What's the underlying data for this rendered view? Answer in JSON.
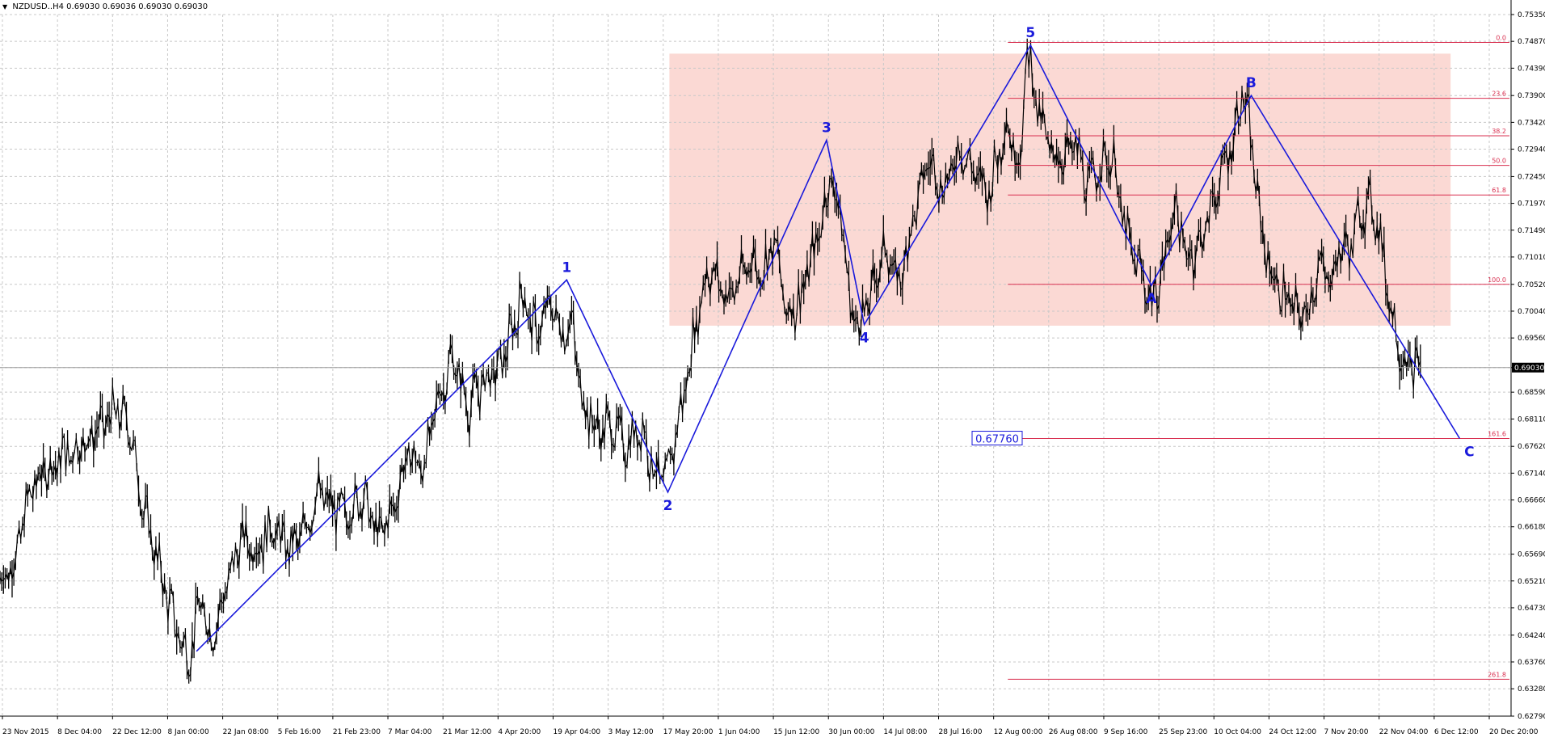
{
  "header": {
    "symbol": "NZDUSD..H4",
    "ohlc": "0.69030 0.69036 0.69030 0.69030",
    "menu_icon": "triangle-down-icon"
  },
  "colors": {
    "background": "#ffffff",
    "grid": "#c8c8c8",
    "price": "#000000",
    "wave": "#1a1adb",
    "fib": "#d93050",
    "zone": "#fbd9d4",
    "current_price_box": "#000000"
  },
  "chart_data": {
    "type": "candlestick",
    "symbol": "NZDUSD",
    "timeframe": "H4",
    "ylim": [
      0.6279,
      0.7535
    ],
    "y_ticks": [
      "0.75350",
      "0.74870",
      "0.74390",
      "0.73900",
      "0.73420",
      "0.72940",
      "0.72450",
      "0.71970",
      "0.71490",
      "0.71010",
      "0.70520",
      "0.70040",
      "0.69560",
      "0.69030",
      "0.68590",
      "0.68110",
      "0.67620",
      "0.67140",
      "0.66660",
      "0.66180",
      "0.65690",
      "0.65210",
      "0.64730",
      "0.64240",
      "0.63760",
      "0.63280",
      "0.62790"
    ],
    "x_ticks": [
      "23 Nov 2015",
      "8 Dec 04:00",
      "22 Dec 12:00",
      "8 Jan 00:00",
      "22 Jan 08:00",
      "5 Feb 16:00",
      "21 Feb 23:00",
      "7 Mar 04:00",
      "21 Mar 12:00",
      "4 Apr 20:00",
      "19 Apr 04:00",
      "3 May 12:00",
      "17 May 20:00",
      "1 Jun 04:00",
      "15 Jun 12:00",
      "30 Jun 00:00",
      "14 Jul 08:00",
      "28 Jul 16:00",
      "12 Aug 00:00",
      "26 Aug 08:00",
      "9 Sep 16:00",
      "25 Sep 23:00",
      "10 Oct 04:00",
      "24 Oct 12:00",
      "7 Nov 20:00",
      "22 Nov 04:00",
      "6 Dec 12:00",
      "20 Dec 20:00"
    ],
    "current_price": "0.69030",
    "price_path": [
      [
        0,
        0.652
      ],
      [
        0.01,
        0.656
      ],
      [
        0.02,
        0.668
      ],
      [
        0.03,
        0.672
      ],
      [
        0.045,
        0.675
      ],
      [
        0.06,
        0.678
      ],
      [
        0.075,
        0.682
      ],
      [
        0.085,
        0.681
      ],
      [
        0.095,
        0.665
      ],
      [
        0.105,
        0.655
      ],
      [
        0.115,
        0.645
      ],
      [
        0.125,
        0.638
      ],
      [
        0.132,
        0.648
      ],
      [
        0.14,
        0.642
      ],
      [
        0.15,
        0.651
      ],
      [
        0.16,
        0.66
      ],
      [
        0.17,
        0.658
      ],
      [
        0.18,
        0.662
      ],
      [
        0.19,
        0.658
      ],
      [
        0.2,
        0.66
      ],
      [
        0.21,
        0.668
      ],
      [
        0.22,
        0.665
      ],
      [
        0.23,
        0.664
      ],
      [
        0.24,
        0.668
      ],
      [
        0.25,
        0.66
      ],
      [
        0.26,
        0.665
      ],
      [
        0.27,
        0.675
      ],
      [
        0.28,
        0.672
      ],
      [
        0.29,
        0.685
      ],
      [
        0.3,
        0.692
      ],
      [
        0.31,
        0.683
      ],
      [
        0.32,
        0.688
      ],
      [
        0.33,
        0.69
      ],
      [
        0.34,
        0.697
      ],
      [
        0.345,
        0.704
      ],
      [
        0.355,
        0.696
      ],
      [
        0.365,
        0.702
      ],
      [
        0.372,
        0.696
      ],
      [
        0.378,
        0.699
      ],
      [
        0.385,
        0.685
      ],
      [
        0.395,
        0.679
      ],
      [
        0.405,
        0.68
      ],
      [
        0.415,
        0.676
      ],
      [
        0.425,
        0.68
      ],
      [
        0.432,
        0.673
      ],
      [
        0.44,
        0.669
      ],
      [
        0.445,
        0.676
      ],
      [
        0.45,
        0.682
      ],
      [
        0.455,
        0.689
      ],
      [
        0.462,
        0.7
      ],
      [
        0.468,
        0.708
      ],
      [
        0.475,
        0.706
      ],
      [
        0.482,
        0.703
      ],
      [
        0.49,
        0.706
      ],
      [
        0.497,
        0.71
      ],
      [
        0.505,
        0.707
      ],
      [
        0.51,
        0.713
      ],
      [
        0.515,
        0.71
      ],
      [
        0.52,
        0.7
      ],
      [
        0.53,
        0.703
      ],
      [
        0.54,
        0.712
      ],
      [
        0.55,
        0.725
      ],
      [
        0.558,
        0.715
      ],
      [
        0.563,
        0.7
      ],
      [
        0.57,
        0.699
      ],
      [
        0.575,
        0.702
      ],
      [
        0.585,
        0.712
      ],
      [
        0.595,
        0.705
      ],
      [
        0.605,
        0.718
      ],
      [
        0.615,
        0.728
      ],
      [
        0.625,
        0.722
      ],
      [
        0.635,
        0.73
      ],
      [
        0.645,
        0.725
      ],
      [
        0.655,
        0.722
      ],
      [
        0.665,
        0.734
      ],
      [
        0.675,
        0.727
      ],
      [
        0.68,
        0.748
      ],
      [
        0.688,
        0.735
      ],
      [
        0.695,
        0.729
      ],
      [
        0.703,
        0.728
      ],
      [
        0.712,
        0.73
      ],
      [
        0.72,
        0.722
      ],
      [
        0.73,
        0.728
      ],
      [
        0.738,
        0.727
      ],
      [
        0.742,
        0.718
      ],
      [
        0.75,
        0.71
      ],
      [
        0.757,
        0.706
      ],
      [
        0.763,
        0.702
      ],
      [
        0.77,
        0.708
      ],
      [
        0.777,
        0.72
      ],
      [
        0.785,
        0.71
      ],
      [
        0.795,
        0.713
      ],
      [
        0.805,
        0.722
      ],
      [
        0.815,
        0.73
      ],
      [
        0.823,
        0.74
      ],
      [
        0.828,
        0.73
      ],
      [
        0.835,
        0.715
      ],
      [
        0.842,
        0.706
      ],
      [
        0.85,
        0.703
      ],
      [
        0.858,
        0.7
      ],
      [
        0.865,
        0.7
      ],
      [
        0.872,
        0.708
      ],
      [
        0.88,
        0.706
      ],
      [
        0.888,
        0.712
      ],
      [
        0.895,
        0.712
      ],
      [
        0.9,
        0.718
      ],
      [
        0.907,
        0.72
      ],
      [
        0.913,
        0.715
      ],
      [
        0.918,
        0.705
      ],
      [
        0.923,
        0.698
      ],
      [
        0.928,
        0.692
      ],
      [
        0.935,
        0.69
      ],
      [
        0.94,
        0.6903
      ]
    ],
    "waves": [
      {
        "label": "1",
        "x": 0.375,
        "y": 0.706
      },
      {
        "label": "2",
        "x": 0.442,
        "y": 0.668
      },
      {
        "label": "3",
        "x": 0.547,
        "y": 0.731
      },
      {
        "label": "4",
        "x": 0.572,
        "y": 0.698
      },
      {
        "label": "5",
        "x": 0.682,
        "y": 0.748
      },
      {
        "label": "A",
        "x": 0.762,
        "y": 0.705
      },
      {
        "label": "B",
        "x": 0.828,
        "y": 0.739
      },
      {
        "label": "C",
        "x": 0.966,
        "y": 0.6776
      }
    ],
    "wave_start": {
      "x": 0.13,
      "y": 0.6395
    },
    "fib_levels": [
      {
        "label": "0.0",
        "price": 0.7485
      },
      {
        "label": "23.6",
        "price": 0.7385
      },
      {
        "label": "38.2",
        "price": 0.7318
      },
      {
        "label": "50.0",
        "price": 0.7265
      },
      {
        "label": "61.8",
        "price": 0.7212
      },
      {
        "label": "100.0",
        "price": 0.7052
      },
      {
        "label": "161.6",
        "price": 0.6776
      },
      {
        "label": "261.8",
        "price": 0.6345
      }
    ],
    "fib_target_label": "0.67760",
    "zone": {
      "x_from": 0.443,
      "x_to": 0.96,
      "price_low": 0.6978,
      "price_high": 0.7465
    }
  }
}
